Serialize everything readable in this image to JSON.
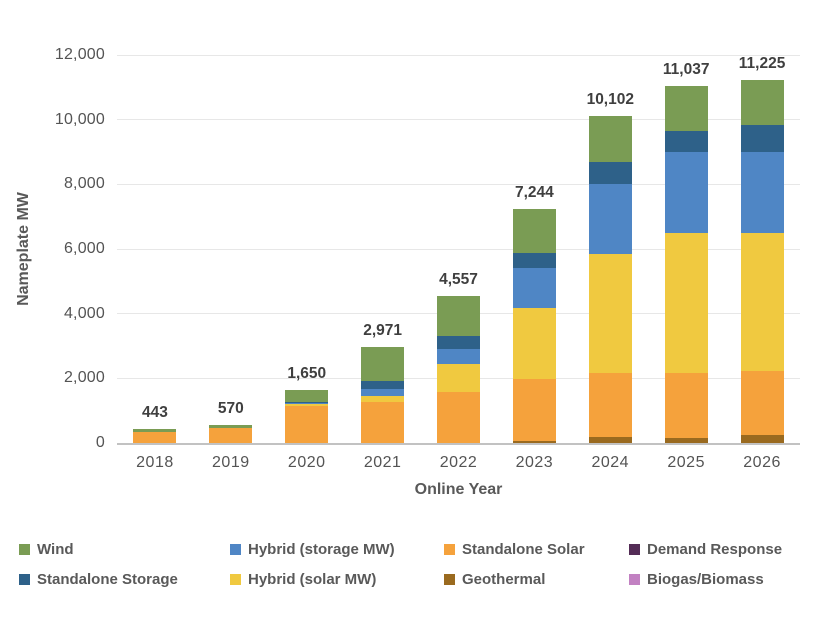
{
  "chart_data": {
    "type": "bar",
    "stacked": true,
    "title": "",
    "xlabel": "Online Year",
    "ylabel": "Nameplate MW",
    "categories": [
      "2018",
      "2019",
      "2020",
      "2021",
      "2022",
      "2023",
      "2024",
      "2025",
      "2026"
    ],
    "totals": [
      443,
      570,
      1650,
      2971,
      4557,
      7244,
      10102,
      11037,
      11225
    ],
    "totals_labels": [
      "443",
      "570",
      "1,650",
      "2,971",
      "4,557",
      "7,244",
      "10,102",
      "11,037",
      "11,225"
    ],
    "ylim": [
      0,
      12000
    ],
    "ytick_step": 2000,
    "ytick_labels": [
      "0",
      "2,000",
      "4,000",
      "6,000",
      "8,000",
      "10,000",
      "12,000"
    ],
    "grid": "horizontal",
    "stack_order_note": "series listed bottom-to-top of stack; values estimated from pixel heights",
    "series": [
      {
        "name": "Geothermal",
        "color": "#9A6A1F",
        "values": [
          0,
          0,
          0,
          0,
          0,
          62,
          194,
          164,
          250
        ]
      },
      {
        "name": "Standalone Solar",
        "color": "#F5A23C",
        "values": [
          343,
          450,
          1155,
          1256,
          1592,
          1910,
          1971,
          1990,
          1980
        ]
      },
      {
        "name": "Hybrid (solar MW)",
        "color": "#F0C940",
        "values": [
          0,
          0,
          60,
          185,
          855,
          2218,
          3696,
          4327,
          4275
        ]
      },
      {
        "name": "Hybrid (storage MW)",
        "color": "#4F86C5",
        "values": [
          0,
          0,
          20,
          215,
          470,
          1232,
          2138,
          2525,
          2505
        ]
      },
      {
        "name": "Standalone Storage",
        "color": "#2E6189",
        "values": [
          0,
          0,
          25,
          275,
          385,
          462,
          687,
          640,
          825
        ]
      },
      {
        "name": "Wind",
        "color": "#7A9C54",
        "values": [
          100,
          120,
          390,
          1040,
          1255,
          1360,
          1416,
          1391,
          1390
        ]
      },
      {
        "name": "Demand Response",
        "color": "#542C56",
        "values": [
          0,
          0,
          0,
          0,
          0,
          0,
          0,
          0,
          0
        ]
      },
      {
        "name": "Biogas/Biomass",
        "color": "#C281C2",
        "values": [
          0,
          0,
          0,
          0,
          0,
          0,
          0,
          0,
          0
        ]
      }
    ],
    "legend": {
      "position": "bottom",
      "items": [
        {
          "label": "Wind",
          "color": "#7A9C54"
        },
        {
          "label": "Hybrid (storage MW)",
          "color": "#4F86C5"
        },
        {
          "label": "Standalone Solar",
          "color": "#F5A23C"
        },
        {
          "label": "Demand Response",
          "color": "#542C56"
        },
        {
          "label": "Standalone Storage",
          "color": "#2E6189"
        },
        {
          "label": "Hybrid (solar MW)",
          "color": "#F0C940"
        },
        {
          "label": "Geothermal",
          "color": "#9A6A1F"
        },
        {
          "label": "Biogas/Biomass",
          "color": "#C281C2"
        }
      ]
    }
  },
  "colors": {
    "background": "#FFFFFF",
    "tick_text": "#545454",
    "axis_title_text": "#595959",
    "total_label_text": "#3F3F3F",
    "gridline": "#E7E7E7",
    "axis_line": "#C2C2C2"
  }
}
